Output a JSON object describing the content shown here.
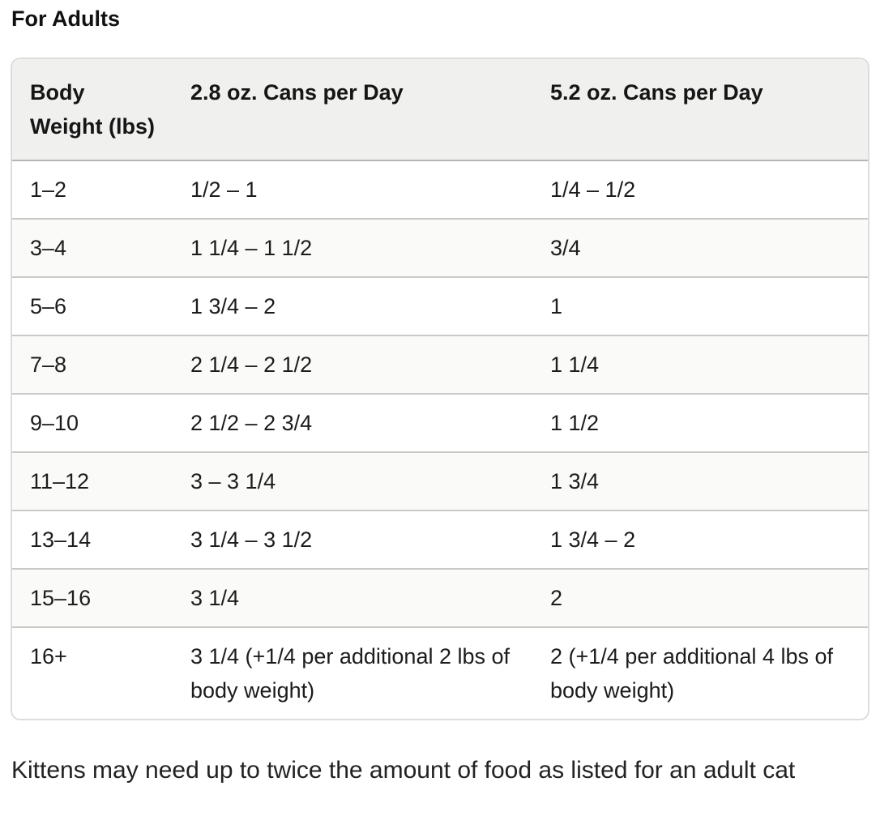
{
  "heading": "For Adults",
  "table": {
    "columns": [
      "Body Weight (lbs)",
      "2.8 oz. Cans per Day",
      "5.2 oz. Cans per Day"
    ],
    "rows": [
      [
        "1–2",
        "1/2 – 1",
        "1/4 – 1/2"
      ],
      [
        "3–4",
        "1 1/4 – 1 1/2",
        "3/4"
      ],
      [
        "5–6",
        "1 3/4 – 2",
        "1"
      ],
      [
        "7–8",
        "2 1/4 – 2 1/2",
        "1 1/4"
      ],
      [
        "9–10",
        "2 1/2 – 2 3/4",
        "1 1/2"
      ],
      [
        "11–12",
        "3 – 3 1/4",
        "1 3/4"
      ],
      [
        "13–14",
        "3 1/4 – 3 1/2",
        "1 3/4 – 2"
      ],
      [
        "15–16",
        "3 1/4",
        "2"
      ],
      [
        "16+",
        "3 1/4 (+1/4 per additional 2 lbs of body weight)",
        "2 (+1/4 per additional 4 lbs of body weight)"
      ]
    ]
  },
  "note": "Kittens may need up to twice the amount of food as listed for an adult cat",
  "colors": {
    "header_background": "#f0f0ef",
    "row_stripe": "#fafaf9",
    "row_divider": "#c9c9c8",
    "header_divider": "#b6b6b6",
    "outer_border": "#dedddc",
    "text": "#1c1c1c"
  }
}
